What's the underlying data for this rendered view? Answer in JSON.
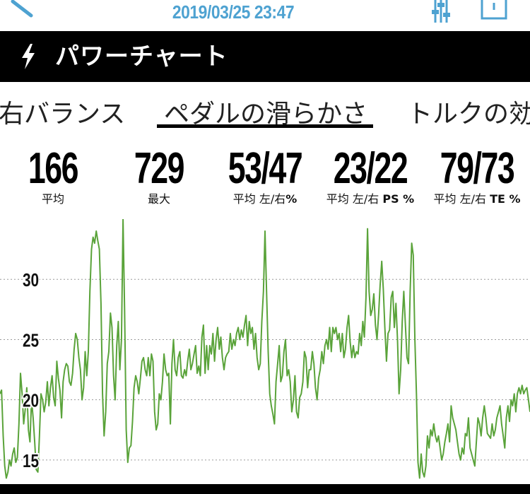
{
  "header": {
    "datetime": "2019/03/25 23:47",
    "accent_color": "#4ea2d1",
    "icons": [
      "back-icon",
      "filter-sliders-icon",
      "share-icon"
    ]
  },
  "titlebar": {
    "icon": "lightning-bolt-icon",
    "title": "パワーチャート"
  },
  "tabs": [
    {
      "label": "右バランス",
      "selected": false
    },
    {
      "label": "ペダルの滑らかさ",
      "selected": true
    },
    {
      "label": "トルクの効",
      "selected": false
    }
  ],
  "stats": [
    {
      "value": "166",
      "label": "平均"
    },
    {
      "value": "729",
      "label": "最大"
    },
    {
      "value": "53/47",
      "label_prefix": "平均 左/右",
      "label_suffix": "%"
    },
    {
      "value": "23/22",
      "label_prefix": "平均 左/右 ",
      "label_bold": "PS",
      "label_suffix": " %"
    },
    {
      "value": "79/73",
      "label_prefix": "平均 左/右 ",
      "label_bold": "TE",
      "label_suffix": " %"
    }
  ],
  "chart_data": {
    "type": "line",
    "y_ticks": [
      "30",
      "25",
      "20",
      "15"
    ],
    "y_tick_values": [
      30,
      25,
      20,
      15
    ],
    "ylim": [
      13,
      35
    ],
    "grid": "horizontal dotted",
    "line_color": "#5aa33a",
    "series": [
      {
        "values": [
          20.5,
          20.8,
          17,
          14.5,
          13.5,
          14,
          15,
          14.5,
          15.5,
          16,
          14.8,
          15.2,
          18,
          22.2,
          20.5,
          18,
          19.2,
          21,
          17.5,
          16.5,
          20,
          18.5,
          16.5,
          14.2,
          14,
          17,
          20.5,
          20,
          19,
          19.8,
          21.5,
          19.5,
          21,
          22,
          20.2,
          19.5,
          23.2,
          21.8,
          20.8,
          18.5,
          21.5,
          22.5,
          23,
          22.8,
          21.5,
          21.2,
          22.2,
          24.2,
          25.5,
          25,
          23.5,
          22.5,
          20,
          21,
          24,
          22,
          24,
          29,
          32.5,
          33.5,
          33,
          34,
          33.2,
          32.5,
          28,
          20.5,
          17,
          19,
          23,
          24,
          27.2,
          26,
          22,
          20,
          24.5,
          26.5,
          22.5,
          25,
          35,
          27.5,
          17.5,
          14.8,
          16,
          16.2,
          18.2,
          21,
          22,
          21.5,
          20.5,
          21.8,
          23.2,
          23.5,
          22.5,
          22,
          23.5,
          22,
          23.8,
          23.2,
          19,
          17.5,
          18,
          20.5,
          20,
          21.5,
          23.8,
          22.5,
          22,
          22.2,
          18,
          23,
          25,
          22.5,
          22,
          23.5,
          24,
          22,
          21.8,
          22.5,
          22,
          23.2,
          24.2,
          22.5,
          23,
          23.8,
          24.5,
          22.2,
          22.8,
          22,
          25.2,
          26.2,
          22.2,
          24.5,
          22.5,
          24.5,
          23.8,
          25.5,
          23.2,
          25,
          26,
          24.2,
          25.2,
          23.5,
          22.5,
          23.5,
          23.8,
          24,
          25.5,
          24.2,
          25,
          24.5,
          25.5,
          26,
          25,
          25.8,
          25.2,
          26.2,
          27,
          24.5,
          26.5,
          25.5,
          26,
          24.2,
          25.5,
          23.5,
          22.5,
          23,
          26.5,
          29,
          34,
          29,
          24,
          20.5,
          19.5,
          18.8,
          18,
          21.5,
          23,
          24.5,
          21.5,
          22,
          24,
          25,
          22,
          22.5,
          21.5,
          19,
          20,
          22,
          19,
          18.5,
          20.2,
          20.5,
          21.5,
          24,
          23.5,
          21,
          22.5,
          22.5,
          24,
          23,
          21,
          20,
          21.8,
          22.5,
          24,
          23,
          24.5,
          25,
          24.2,
          26,
          24,
          26,
          25.5,
          26,
          25,
          25.5,
          24,
          25.5,
          23.5,
          24.2,
          26,
          27,
          24.8,
          23.5,
          24.5,
          23.5,
          24,
          23.8,
          25.5,
          24.5,
          26.5,
          25.2,
          28.5,
          34.2,
          29,
          27,
          27.5,
          28.8,
          26.2,
          25,
          27,
          29.5,
          31.5,
          29.2,
          26,
          23.2,
          25.5,
          25.8,
          28.5,
          29,
          26,
          28,
          25,
          20.5,
          22.5,
          26.5,
          29,
          26.2,
          23.5,
          23,
          29,
          33,
          32,
          25,
          20.5,
          14.8,
          13.5,
          15.5,
          14,
          13.6,
          14.5,
          17,
          16,
          17.5,
          17,
          18,
          17,
          16.5,
          17,
          16,
          15,
          15.5,
          16.5,
          17.2,
          18,
          16.5,
          19.5,
          18.5,
          18,
          17.5,
          16.5,
          15.5,
          15,
          16,
          15.5,
          17.2,
          17,
          18.5,
          16,
          15.5,
          15,
          14.5,
          16.5,
          18.5,
          18,
          17,
          18.5,
          19.5,
          18.5,
          17.2,
          17,
          16.8,
          18,
          17,
          17.5,
          18.5,
          19,
          19.5,
          18,
          17,
          16,
          18.5,
          19.5,
          18.2,
          20,
          19.5,
          20.5,
          19,
          20.5,
          21,
          20.5,
          21.2,
          20.5,
          20.8,
          21,
          20,
          19
        ]
      }
    ]
  }
}
